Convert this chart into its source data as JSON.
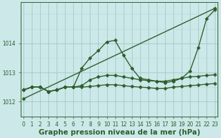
{
  "xlabel": "Graphe pression niveau de la mer (hPa)",
  "bg_color": "#cce8e8",
  "plot_bg_color": "#cce8e8",
  "grid_color_major": "#a0c8c8",
  "grid_color_minor": "#b8d8d8",
  "line_color": "#2d5e2d",
  "marker_color": "#2d5e2d",
  "yticks": [
    1012,
    1013,
    1014
  ],
  "ylim": [
    1011.5,
    1015.4
  ],
  "xlim": [
    -0.3,
    23.3
  ],
  "xticks": [
    0,
    1,
    2,
    3,
    4,
    5,
    6,
    7,
    8,
    9,
    10,
    11,
    12,
    13,
    14,
    15,
    16,
    17,
    18,
    19,
    20,
    21,
    22,
    23
  ],
  "lines": [
    {
      "x": [
        0,
        23
      ],
      "y": [
        1012.1,
        1015.2
      ],
      "marker": true
    },
    {
      "x": [
        0,
        1,
        2,
        3,
        4,
        5,
        6,
        7,
        8,
        9,
        10,
        11,
        12,
        13,
        14,
        15,
        16,
        17,
        18,
        19,
        20,
        21,
        22,
        23
      ],
      "y": [
        1012.4,
        1012.5,
        1012.5,
        1012.35,
        1012.4,
        1012.5,
        1012.5,
        1013.15,
        1013.5,
        1013.75,
        1014.05,
        1014.1,
        1013.6,
        1013.15,
        1012.8,
        1012.75,
        1012.7,
        1012.65,
        1012.7,
        1012.8,
        1013.05,
        1013.85,
        1014.85,
        1015.15
      ],
      "marker": true
    },
    {
      "x": [
        0,
        1,
        2,
        3,
        4,
        5,
        6,
        7,
        8,
        9,
        10,
        11,
        12,
        13,
        14,
        15,
        16,
        17,
        18,
        19,
        20,
        21,
        22,
        23
      ],
      "y": [
        1012.4,
        1012.5,
        1012.5,
        1012.35,
        1012.4,
        1012.5,
        1012.5,
        1012.55,
        1012.75,
        1012.85,
        1012.9,
        1012.9,
        1012.85,
        1012.8,
        1012.75,
        1012.72,
        1012.7,
        1012.7,
        1012.75,
        1012.8,
        1012.85,
        1012.87,
        1012.9,
        1012.92
      ],
      "marker": true
    },
    {
      "x": [
        0,
        1,
        2,
        3,
        4,
        5,
        6,
        7,
        8,
        9,
        10,
        11,
        12,
        13,
        14,
        15,
        16,
        17,
        18,
        19,
        20,
        21,
        22,
        23
      ],
      "y": [
        1012.4,
        1012.5,
        1012.5,
        1012.35,
        1012.4,
        1012.5,
        1012.5,
        1012.5,
        1012.52,
        1012.55,
        1012.58,
        1012.58,
        1012.55,
        1012.52,
        1012.5,
        1012.48,
        1012.45,
        1012.45,
        1012.5,
        1012.52,
        1012.55,
        1012.57,
        1012.6,
        1012.62
      ],
      "marker": true
    }
  ],
  "marker_style": "D",
  "markersize": 2.5,
  "linewidth": 1.0,
  "tick_fontsize": 5.5,
  "xlabel_fontsize": 7.5,
  "xlabel_bold": true
}
